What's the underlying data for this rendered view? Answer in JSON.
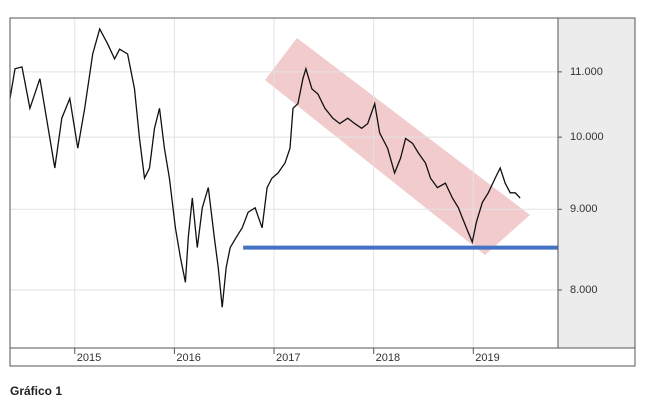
{
  "chart_data": {
    "type": "line",
    "caption": "Gráfico 1",
    "x": [
      2014.35,
      2014.4,
      2014.47,
      2014.55,
      2014.65,
      2014.75,
      2014.8,
      2014.87,
      2014.95,
      2015.03,
      2015.1,
      2015.18,
      2015.25,
      2015.33,
      2015.4,
      2015.45,
      2015.53,
      2015.6,
      2015.65,
      2015.7,
      2015.75,
      2015.8,
      2015.85,
      2015.9,
      2015.95,
      2016.01,
      2016.06,
      2016.11,
      2016.14,
      2016.18,
      2016.23,
      2016.28,
      2016.34,
      2016.4,
      2016.44,
      2016.48,
      2016.52,
      2016.56,
      2016.62,
      2016.68,
      2016.74,
      2016.81,
      2016.88,
      2016.93,
      2016.98,
      2017.04,
      2017.11,
      2017.16,
      2017.19,
      2017.24,
      2017.29,
      2017.32,
      2017.38,
      2017.44,
      2017.51,
      2017.59,
      2017.66,
      2017.74,
      2017.81,
      2017.88,
      2017.94,
      2018.01,
      2018.06,
      2018.14,
      2018.21,
      2018.27,
      2018.32,
      2018.39,
      2018.45,
      2018.52,
      2018.57,
      2018.64,
      2018.72,
      2018.79,
      2018.85,
      2018.89,
      2018.95,
      2018.99,
      2019.03,
      2019.09,
      2019.15,
      2019.22,
      2019.27,
      2019.32,
      2019.37,
      2019.42,
      2019.47
    ],
    "series": [
      {
        "color": "#111111",
        "values": [
          10580,
          11050,
          11080,
          10430,
          10890,
          9980,
          9560,
          10280,
          10580,
          9840,
          10430,
          11290,
          11710,
          11460,
          11210,
          11370,
          11290,
          10730,
          9980,
          9420,
          9560,
          10130,
          10430,
          9840,
          9420,
          8760,
          8390,
          8090,
          8640,
          9150,
          8510,
          9020,
          9290,
          8640,
          8270,
          7800,
          8270,
          8510,
          8640,
          8760,
          8960,
          9020,
          8760,
          9290,
          9420,
          9490,
          9630,
          9840,
          10430,
          10500,
          10890,
          11050,
          10730,
          10650,
          10430,
          10280,
          10200,
          10280,
          10200,
          10130,
          10200,
          10500,
          10060,
          9840,
          9490,
          9700,
          9980,
          9910,
          9770,
          9630,
          9420,
          9290,
          9350,
          9150,
          9020,
          8890,
          8700,
          8580,
          8830,
          9090,
          9220,
          9420,
          9560,
          9350,
          9220,
          9220,
          9150
        ]
      }
    ],
    "hlines": [
      {
        "y": 8510,
        "x_start": 2016.69,
        "color": "#4472c4"
      }
    ],
    "xlim": [
      2014.35,
      2019.85
    ],
    "xticks": [
      2015,
      2016,
      2017,
      2018,
      2019
    ],
    "ylim": [
      7350,
      11900
    ],
    "log_y": true,
    "yticks": [
      {
        "value": 8000,
        "label": "8.000"
      },
      {
        "value": 9000,
        "label": "9.000"
      },
      {
        "value": 10000,
        "label": "10.000"
      },
      {
        "value": 11000,
        "label": "11.000"
      }
    ],
    "grid": true
  }
}
